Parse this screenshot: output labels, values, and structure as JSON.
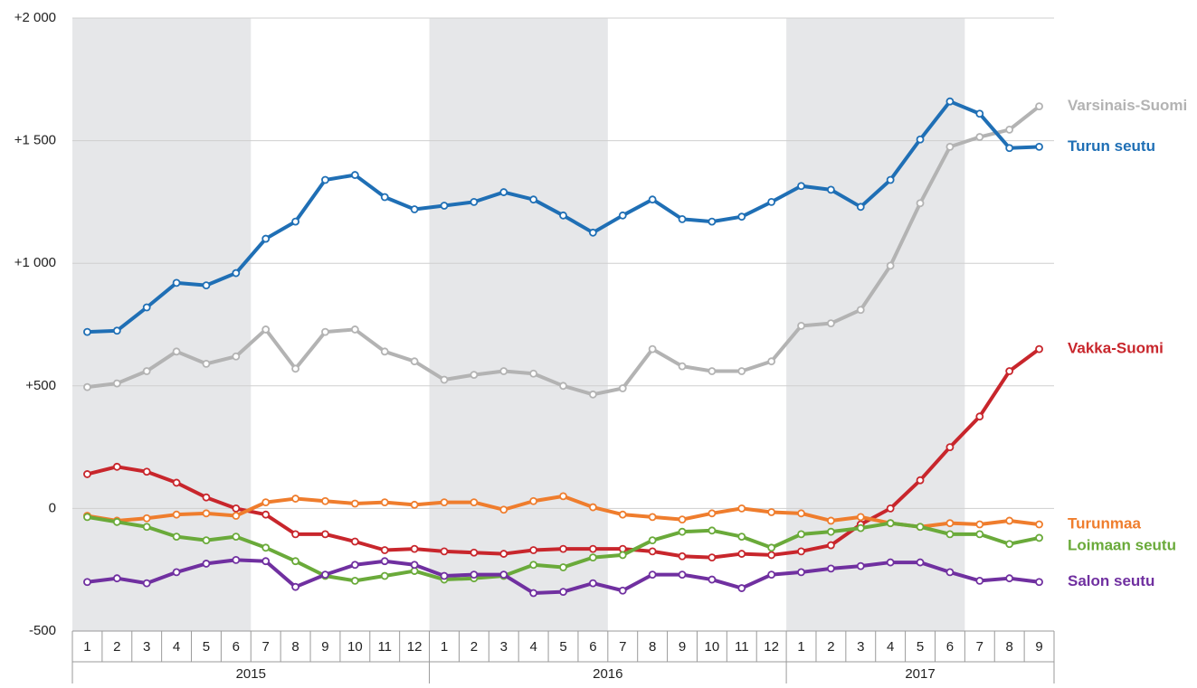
{
  "chart_data": {
    "type": "line",
    "categories": [
      "1",
      "2",
      "3",
      "4",
      "5",
      "6",
      "7",
      "8",
      "9",
      "10",
      "11",
      "12",
      "1",
      "2",
      "3",
      "4",
      "5",
      "6",
      "7",
      "8",
      "9",
      "10",
      "11",
      "12",
      "1",
      "2",
      "3",
      "4",
      "5",
      "6",
      "7",
      "8",
      "9"
    ],
    "year_groups": [
      "2015",
      "2016",
      "2017"
    ],
    "ylim": [
      -500,
      2000
    ],
    "yticks": [
      {
        "value": -500,
        "label": "-500"
      },
      0,
      {
        "value": 500,
        "label": "+500"
      },
      {
        "value": 1000,
        "label": "+1 000"
      },
      {
        "value": 1500,
        "label": "+1 500"
      },
      {
        "value": 2000,
        "label": "+2 000"
      }
    ],
    "grid": true,
    "series": [
      {
        "name": "Varsinais-Suomi",
        "color": "#b3b3b3",
        "values": [
          495,
          510,
          560,
          640,
          590,
          620,
          730,
          570,
          720,
          730,
          640,
          600,
          525,
          545,
          560,
          550,
          500,
          465,
          490,
          650,
          580,
          560,
          560,
          600,
          745,
          755,
          810,
          990,
          1245,
          1475,
          1515,
          1545,
          1640
        ]
      },
      {
        "name": "Turun seutu",
        "color": "#1f6fb5",
        "values": [
          720,
          725,
          820,
          920,
          910,
          960,
          1100,
          1170,
          1340,
          1360,
          1270,
          1220,
          1235,
          1250,
          1290,
          1260,
          1195,
          1125,
          1195,
          1260,
          1180,
          1170,
          1190,
          1250,
          1315,
          1300,
          1230,
          1340,
          1505,
          1660,
          1610,
          1470,
          1475
        ]
      },
      {
        "name": "Vakka-Suomi",
        "color": "#c8262c",
        "values": [
          140,
          170,
          150,
          105,
          45,
          0,
          -25,
          -105,
          -105,
          -135,
          -170,
          -165,
          -175,
          -180,
          -185,
          -170,
          -165,
          -165,
          -165,
          -175,
          -195,
          -200,
          -185,
          -190,
          -175,
          -150,
          -65,
          0,
          115,
          250,
          375,
          560,
          650
        ]
      },
      {
        "name": "Turunmaa",
        "color": "#ef7d2d",
        "values": [
          -30,
          -50,
          -40,
          -25,
          -20,
          -30,
          25,
          40,
          30,
          20,
          25,
          15,
          25,
          25,
          -5,
          30,
          50,
          5,
          -25,
          -35,
          -45,
          -20,
          0,
          -15,
          -20,
          -50,
          -35,
          -60,
          -75,
          -60,
          -65,
          -50,
          -65
        ]
      },
      {
        "name": "Loimaan seutu",
        "color": "#6aaa3a",
        "values": [
          -35,
          -55,
          -75,
          -115,
          -130,
          -115,
          -160,
          -215,
          -275,
          -295,
          -275,
          -255,
          -290,
          -285,
          -275,
          -230,
          -240,
          -200,
          -190,
          -130,
          -95,
          -90,
          -115,
          -160,
          -105,
          -95,
          -80,
          -60,
          -75,
          -105,
          -105,
          -145,
          -120
        ]
      },
      {
        "name": "Salon seutu",
        "color": "#7030a0",
        "values": [
          -300,
          -285,
          -305,
          -260,
          -225,
          -210,
          -215,
          -320,
          -270,
          -230,
          -215,
          -230,
          -275,
          -270,
          -270,
          -345,
          -340,
          -305,
          -335,
          -270,
          -270,
          -290,
          -325,
          -270,
          -260,
          -245,
          -235,
          -220,
          -220,
          -260,
          -295,
          -285,
          -300
        ]
      }
    ]
  }
}
